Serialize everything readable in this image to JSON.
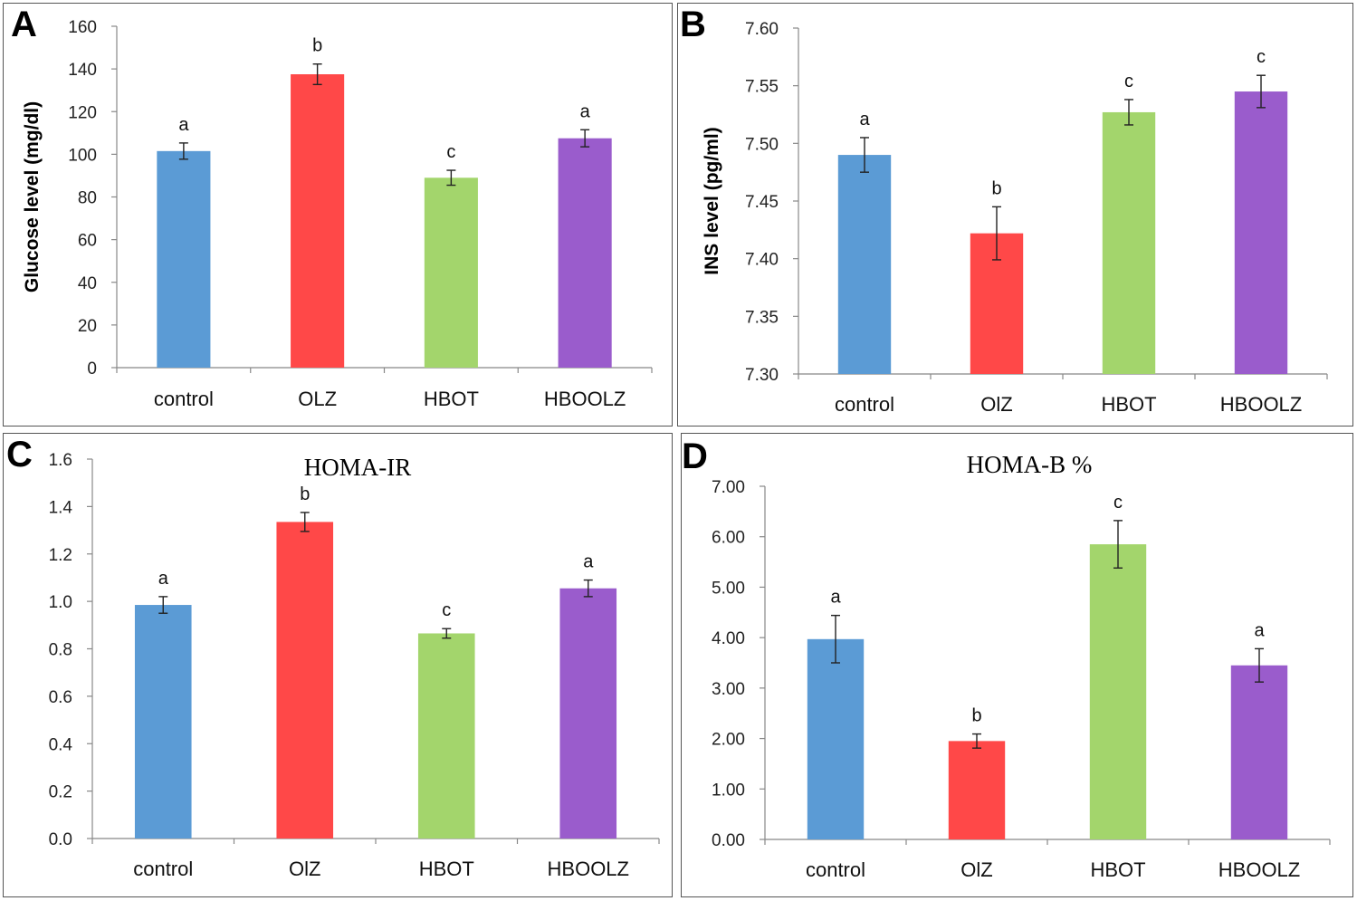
{
  "chart_data": [
    {
      "panel_label": "A",
      "type": "bar",
      "title": "",
      "ylabel": "Glucose level (mg/dl)",
      "categories": [
        "control",
        "OLZ",
        "HBOT",
        "HBOOLZ"
      ],
      "values": [
        101.5,
        137.5,
        89.0,
        107.5
      ],
      "errors": [
        3.8,
        4.8,
        3.5,
        4.0
      ],
      "significance": [
        "a",
        "b",
        "c",
        "a"
      ],
      "colors": [
        "#5b9bd5",
        "#ff4848",
        "#a3d56c",
        "#9a5ccc"
      ],
      "ylim": [
        0,
        160
      ],
      "yticks": [
        "0",
        "20",
        "40",
        "60",
        "80",
        "100",
        "120",
        "140",
        "160"
      ]
    },
    {
      "panel_label": "B",
      "type": "bar",
      "title": "",
      "ylabel": "INS level (pg/ml)",
      "categories": [
        "control",
        "OlZ",
        "HBOT",
        "HBOOLZ"
      ],
      "values": [
        7.49,
        7.422,
        7.527,
        7.545
      ],
      "errors": [
        0.015,
        0.023,
        0.011,
        0.014
      ],
      "significance": [
        "a",
        "b",
        "c",
        "c"
      ],
      "colors": [
        "#5b9bd5",
        "#ff4848",
        "#a3d56c",
        "#9a5ccc"
      ],
      "ylim": [
        7.3,
        7.6
      ],
      "yticks": [
        "7.30",
        "7.35",
        "7.40",
        "7.45",
        "7.50",
        "7.55",
        "7.60"
      ]
    },
    {
      "panel_label": "C",
      "type": "bar",
      "title": "HOMA-IR",
      "ylabel": "",
      "categories": [
        "control",
        "OlZ",
        "HBOT",
        "HBOOLZ"
      ],
      "values": [
        0.985,
        1.335,
        0.865,
        1.055
      ],
      "errors": [
        0.035,
        0.04,
        0.02,
        0.035
      ],
      "significance": [
        "a",
        "b",
        "c",
        "a"
      ],
      "colors": [
        "#5b9bd5",
        "#ff4848",
        "#a3d56c",
        "#9a5ccc"
      ],
      "ylim": [
        0,
        1.6
      ],
      "yticks": [
        "0.0",
        "0.2",
        "0.4",
        "0.6",
        "0.8",
        "1.0",
        "1.2",
        "1.4",
        "1.6"
      ]
    },
    {
      "panel_label": "D",
      "type": "bar",
      "title": "HOMA-B %",
      "ylabel": "",
      "categories": [
        "control",
        "OlZ",
        "HBOT",
        "HBOOLZ"
      ],
      "values": [
        3.97,
        1.95,
        5.85,
        3.45
      ],
      "errors": [
        0.47,
        0.14,
        0.47,
        0.33
      ],
      "significance": [
        "a",
        "b",
        "c",
        "a"
      ],
      "colors": [
        "#5b9bd5",
        "#ff4848",
        "#a3d56c",
        "#9a5ccc"
      ],
      "ylim": [
        0,
        7
      ],
      "yticks": [
        "0.00",
        "1.00",
        "2.00",
        "3.00",
        "4.00",
        "5.00",
        "6.00",
        "7.00"
      ]
    }
  ]
}
